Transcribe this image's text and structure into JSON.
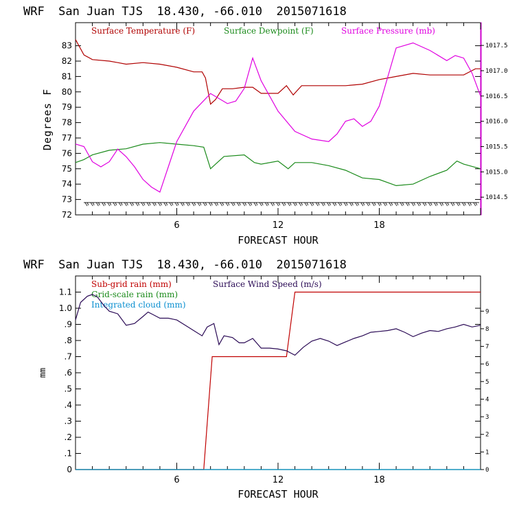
{
  "colors": {
    "temperature": "#b00000",
    "dewpoint": "#1a8a1a",
    "pressure": "#e000e0",
    "subgrid_rain": "#c00000",
    "gridscale_rain": "#1a8a1a",
    "integrated_cloud": "#0a8fd0",
    "wind_speed": "#2a0a55",
    "axis": "#000000"
  },
  "chart_data": [
    {
      "type": "line",
      "title": "WRF  San Juan TJS  18.430, -66.010  2015071618",
      "xlabel": "FORECAST HOUR",
      "ylabel": "Degrees F",
      "xlim": [
        0,
        24
      ],
      "xticks": [
        "6",
        "12",
        "18"
      ],
      "ylim": [
        72,
        84.5
      ],
      "yticks": [
        "72",
        "73",
        "74",
        "75",
        "76",
        "77",
        "78",
        "79",
        "80",
        "81",
        "82",
        "83"
      ],
      "y2lim": [
        1014.15,
        1017.95
      ],
      "y2ticks": [
        "1014.5",
        "1015.0",
        "1015.5",
        "1016.0",
        "1016.5",
        "1017.0",
        "1017.5"
      ],
      "legend_position": "top",
      "series": [
        {
          "name": "Surface Temperature (F)",
          "axis": "left",
          "x": [
            0,
            0.5,
            1,
            2,
            2.5,
            3,
            4,
            5,
            6,
            7,
            7.5,
            7.7,
            8,
            8.3,
            8.7,
            9.3,
            10,
            10.5,
            11,
            12,
            12.5,
            12.9,
            13.4,
            14,
            15,
            16,
            17,
            18,
            19,
            20,
            21,
            22,
            23,
            23.7,
            24
          ],
          "y": [
            83.4,
            82.4,
            82.1,
            82.0,
            81.9,
            81.8,
            81.9,
            81.8,
            81.6,
            81.3,
            81.3,
            80.9,
            79.2,
            79.5,
            80.2,
            80.2,
            80.3,
            80.3,
            79.9,
            79.9,
            80.4,
            79.8,
            80.4,
            80.4,
            80.4,
            80.4,
            80.5,
            80.8,
            81.0,
            81.2,
            81.1,
            81.1,
            81.1,
            81.5,
            81.5
          ]
        },
        {
          "name": "Surface Dewpoint (F)",
          "axis": "left",
          "x": [
            0,
            0.5,
            1,
            2,
            3,
            4,
            5,
            6,
            7,
            7.6,
            8,
            8.4,
            8.8,
            10,
            10.6,
            11,
            12,
            12.6,
            13,
            14,
            15,
            16,
            17,
            18,
            19,
            20,
            21,
            22,
            22.6,
            23,
            24
          ],
          "y": [
            75.4,
            75.6,
            75.9,
            76.2,
            76.3,
            76.6,
            76.7,
            76.6,
            76.5,
            76.4,
            75.0,
            75.4,
            75.8,
            75.9,
            75.4,
            75.3,
            75.5,
            75.0,
            75.4,
            75.4,
            75.2,
            74.9,
            74.4,
            74.3,
            73.9,
            74.0,
            74.5,
            74.9,
            75.5,
            75.3,
            75.0
          ]
        },
        {
          "name": "Surface Pressure (mb)",
          "axis": "right",
          "x": [
            0,
            0.5,
            1,
            1.5,
            2,
            2.5,
            3,
            3.5,
            4,
            4.5,
            5,
            5.5,
            6,
            7,
            8,
            9,
            9.5,
            10,
            10.5,
            11,
            12,
            13,
            14,
            15,
            15.5,
            16,
            16.5,
            17,
            17.5,
            18,
            19,
            20,
            21,
            22,
            22.5,
            23,
            23.5,
            24
          ],
          "y": [
            1015.55,
            1015.5,
            1015.2,
            1015.1,
            1015.2,
            1015.45,
            1015.3,
            1015.1,
            1014.85,
            1014.7,
            1014.6,
            1015.1,
            1015.6,
            1016.2,
            1016.55,
            1016.35,
            1016.4,
            1016.65,
            1017.25,
            1016.8,
            1016.2,
            1015.8,
            1015.65,
            1015.6,
            1015.75,
            1016.0,
            1016.05,
            1015.9,
            1016.0,
            1016.3,
            1017.45,
            1017.55,
            1017.4,
            1017.2,
            1017.3,
            1017.25,
            1016.95,
            1016.5
          ]
        }
      ],
      "wind_barbs_at_y": 72.8
    },
    {
      "type": "line",
      "title": "WRF  San Juan TJS  18.430, -66.010  2015071618",
      "xlabel": "FORECAST HOUR",
      "ylabel": "mm",
      "xlim": [
        0,
        24
      ],
      "xticks": [
        "6",
        "12",
        "18"
      ],
      "ylim": [
        0,
        1.2
      ],
      "yticks": [
        "0",
        ".1",
        ".2",
        ".3",
        ".4",
        ".5",
        ".6",
        ".7",
        ".8",
        ".9",
        "1.0",
        "1.1"
      ],
      "y2lim": [
        0,
        11.0
      ],
      "y2ticks": [
        "0",
        "1",
        "2",
        "3",
        "4",
        "5",
        "6",
        "7",
        "8",
        "9"
      ],
      "legend_position": "top-left",
      "series": [
        {
          "name": "Sub-grid rain (mm)",
          "axis": "left",
          "x": [
            0,
            7.6,
            8.1,
            12.5,
            13.0,
            24
          ],
          "y": [
            0,
            0,
            0.7,
            0.7,
            1.1,
            1.1
          ]
        },
        {
          "name": "Grid-scale rain (mm)",
          "axis": "left",
          "x": [
            0,
            24
          ],
          "y": [
            0,
            0
          ]
        },
        {
          "name": "Integrated cloud (mm)",
          "axis": "left",
          "x": [
            0,
            24
          ],
          "y": [
            0,
            0
          ]
        },
        {
          "name": "Surface Wind Speed (m/s)",
          "axis": "right",
          "x": [
            0,
            0.3,
            0.7,
            1.0,
            1.3,
            1.7,
            2.0,
            2.5,
            3.0,
            3.5,
            4.0,
            4.3,
            4.6,
            5.0,
            5.5,
            6.0,
            6.5,
            7.0,
            7.5,
            7.8,
            8.2,
            8.5,
            8.8,
            9.3,
            9.7,
            10.0,
            10.5,
            11.0,
            11.5,
            12.0,
            12.5,
            13.0,
            13.5,
            14.0,
            14.5,
            15.0,
            15.5,
            16.0,
            16.5,
            17.0,
            17.5,
            18.0,
            18.5,
            19.0,
            19.5,
            20.0,
            20.5,
            21.0,
            21.5,
            22.0,
            22.5,
            23.0,
            23.5,
            24.0
          ],
          "y": [
            8.5,
            9.5,
            9.85,
            9.95,
            9.8,
            9.3,
            9.0,
            8.85,
            8.2,
            8.3,
            8.7,
            8.95,
            8.8,
            8.6,
            8.6,
            8.5,
            8.2,
            7.9,
            7.6,
            8.1,
            8.3,
            7.1,
            7.6,
            7.5,
            7.2,
            7.2,
            7.45,
            6.9,
            6.9,
            6.85,
            6.75,
            6.5,
            6.95,
            7.3,
            7.45,
            7.3,
            7.05,
            7.25,
            7.45,
            7.6,
            7.8,
            7.85,
            7.9,
            8.0,
            7.8,
            7.55,
            7.75,
            7.9,
            7.85,
            8.0,
            8.1,
            8.25,
            8.1,
            8.2
          ]
        }
      ]
    }
  ]
}
